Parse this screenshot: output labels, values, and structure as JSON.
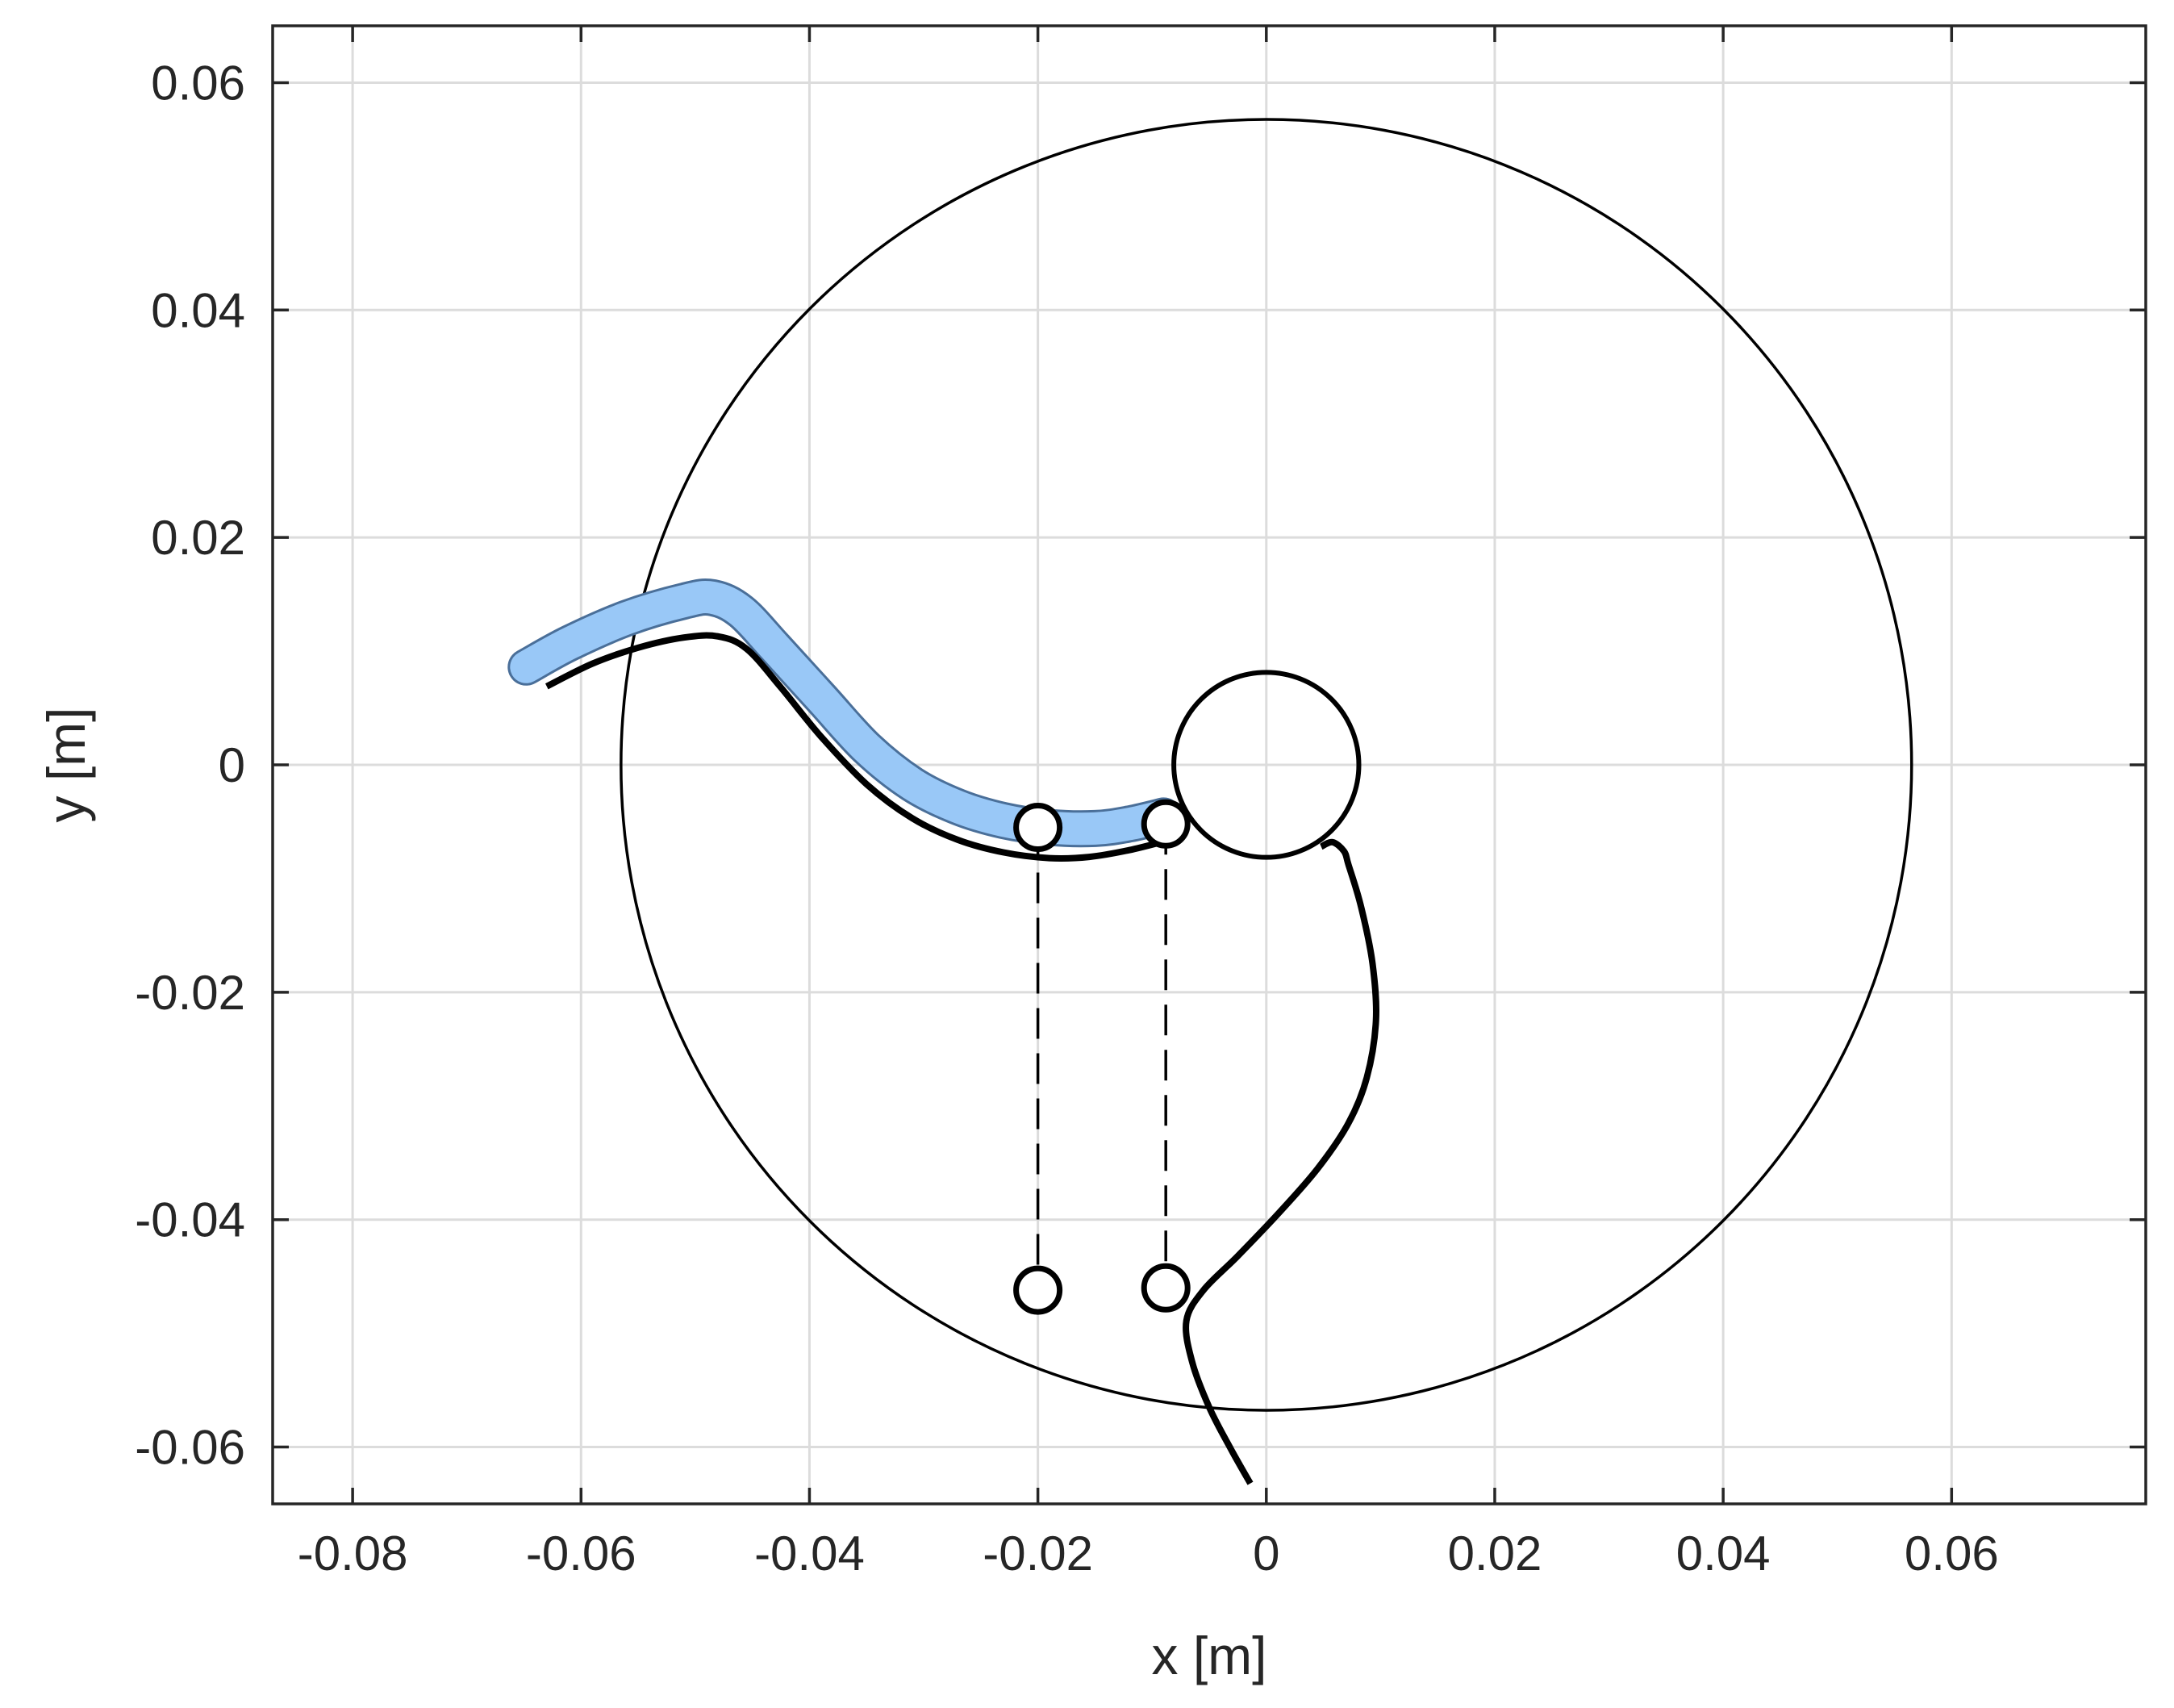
{
  "chart_data": {
    "type": "line",
    "title": "",
    "xlabel": "x [m]",
    "ylabel": "y [m]",
    "xlim": [
      -0.087,
      0.077
    ],
    "ylim": [
      -0.065,
      0.065
    ],
    "grid": true,
    "x_ticks": [
      {
        "value": -0.08,
        "label": "-0.08"
      },
      {
        "value": -0.06,
        "label": "-0.06"
      },
      {
        "value": -0.04,
        "label": "-0.04"
      },
      {
        "value": -0.02,
        "label": "-0.02"
      },
      {
        "value": 0,
        "label": "0"
      },
      {
        "value": 0.02,
        "label": "0.02"
      },
      {
        "value": 0.04,
        "label": "0.04"
      },
      {
        "value": 0.06,
        "label": "0.06"
      }
    ],
    "y_ticks": [
      {
        "value": 0.06,
        "label": "0.06"
      },
      {
        "value": 0.04,
        "label": "0.04"
      },
      {
        "value": 0.02,
        "label": "0.02"
      },
      {
        "value": 0,
        "label": "0"
      },
      {
        "value": -0.02,
        "label": "-0.02"
      },
      {
        "value": -0.04,
        "label": "-0.04"
      },
      {
        "value": -0.06,
        "label": "-0.06"
      }
    ],
    "circles": [
      {
        "cx": 0,
        "cy": 0,
        "r": 0.0565
      },
      {
        "cx": 0,
        "cy": 0,
        "r": 0.0081
      }
    ],
    "band": {
      "color": "#99c8f7",
      "edge_color": "#4a6f99",
      "points": [
        [
          -0.0648,
          0.0086
        ],
        [
          -0.061,
          0.0107
        ],
        [
          -0.056,
          0.0129
        ],
        [
          -0.051,
          0.0144
        ],
        [
          -0.0485,
          0.0147
        ],
        [
          -0.046,
          0.0135
        ],
        [
          -0.043,
          0.0103
        ],
        [
          -0.039,
          0.0059
        ],
        [
          -0.035,
          0.0015
        ],
        [
          -0.031,
          -0.0017
        ],
        [
          -0.027,
          -0.0037
        ],
        [
          -0.023,
          -0.0049
        ],
        [
          -0.019,
          -0.0055
        ],
        [
          -0.015,
          -0.0056
        ],
        [
          -0.012,
          -0.0052
        ],
        [
          -0.009,
          -0.0045
        ]
      ]
    },
    "rod": {
      "points": [
        [
          -0.063,
          0.0069
        ],
        [
          -0.059,
          0.0089
        ],
        [
          -0.055,
          0.0103
        ],
        [
          -0.051,
          0.0112
        ],
        [
          -0.048,
          0.0113
        ],
        [
          -0.0455,
          0.0102
        ],
        [
          -0.0425,
          0.0068
        ],
        [
          -0.039,
          0.0025
        ],
        [
          -0.035,
          -0.0017
        ],
        [
          -0.031,
          -0.0047
        ],
        [
          -0.027,
          -0.0066
        ],
        [
          -0.023,
          -0.0077
        ],
        [
          -0.019,
          -0.0082
        ],
        [
          -0.0155,
          -0.0081
        ],
        [
          -0.012,
          -0.0075
        ],
        [
          -0.0088,
          -0.0067
        ]
      ]
    },
    "guide": {
      "points": [
        [
          0.0048,
          -0.0072
        ],
        [
          0.0058,
          -0.0068
        ],
        [
          0.0068,
          -0.0076
        ],
        [
          0.0072,
          -0.0088
        ],
        [
          0.0083,
          -0.0125
        ],
        [
          0.0093,
          -0.0175
        ],
        [
          0.0096,
          -0.0225
        ],
        [
          0.0088,
          -0.0275
        ],
        [
          0.0072,
          -0.0315
        ],
        [
          0.0045,
          -0.0355
        ],
        [
          0.0012,
          -0.0393
        ],
        [
          -0.0025,
          -0.0432
        ],
        [
          -0.0055,
          -0.0462
        ],
        [
          -0.007,
          -0.0489
        ],
        [
          -0.0065,
          -0.0525
        ],
        [
          -0.005,
          -0.0565
        ],
        [
          -0.0032,
          -0.06
        ],
        [
          -0.0014,
          -0.0632
        ]
      ]
    },
    "markers": [
      {
        "x": -0.02,
        "y": -0.0055
      },
      {
        "x": -0.0088,
        "y": -0.0052
      },
      {
        "x": -0.02,
        "y": -0.0462
      },
      {
        "x": -0.0088,
        "y": -0.046
      }
    ],
    "dashed_lines": [
      {
        "x": -0.02,
        "y1": -0.0055,
        "y2": -0.0462
      },
      {
        "x": -0.0088,
        "y1": -0.0052,
        "y2": -0.046
      }
    ]
  }
}
